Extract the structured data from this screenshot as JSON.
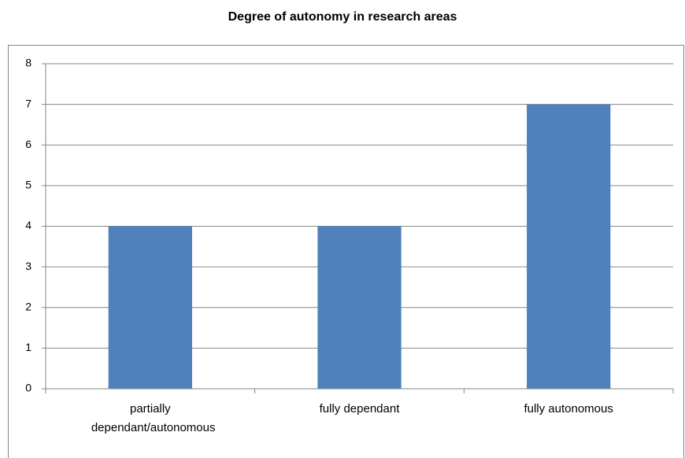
{
  "chart_data": {
    "type": "bar",
    "title": "Degree of autonomy in research areas",
    "categories": [
      "partially dependant/autonomous",
      "fully dependant",
      "fully autonomous"
    ],
    "values": [
      4,
      4,
      7
    ],
    "color": "#4f81bd",
    "ylim": [
      0,
      8
    ],
    "yticks": [
      0,
      1,
      2,
      3,
      4,
      5,
      6,
      7,
      8
    ],
    "grid": true
  }
}
